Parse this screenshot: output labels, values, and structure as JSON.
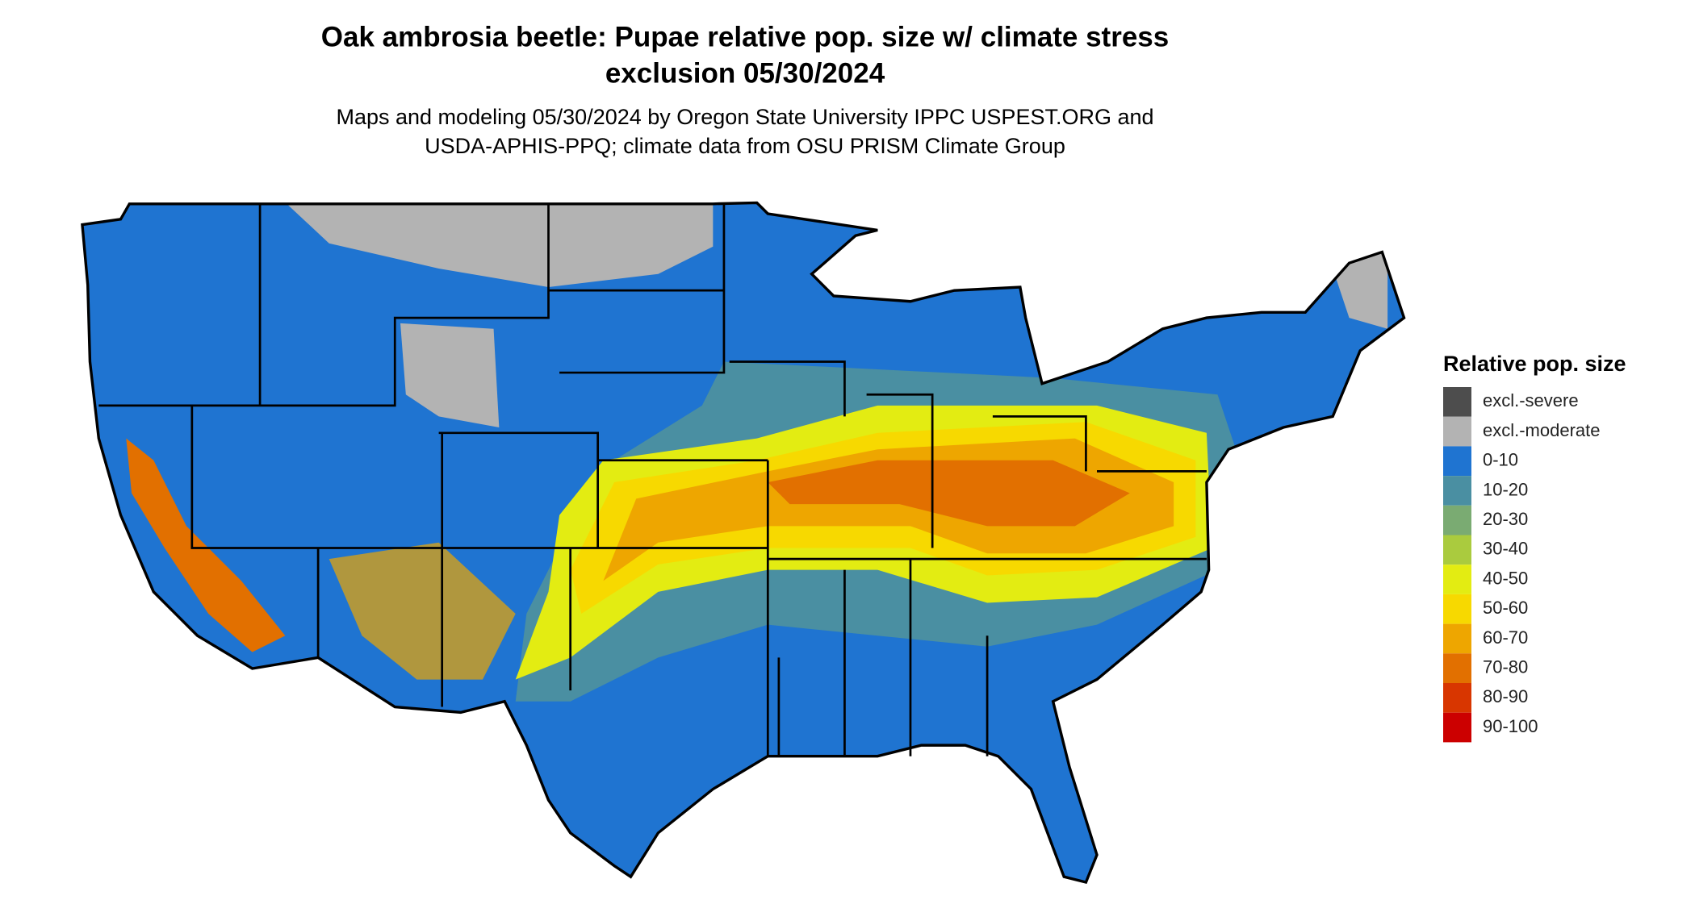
{
  "header": {
    "title": [
      "Oak ambrosia beetle: Pupae relative pop. size w/ climate stress",
      "exclusion 05/30/2024"
    ],
    "subtitle": [
      "Maps and modeling 05/30/2024 by Oregon State University IPPC USPEST.ORG and",
      "USDA-APHIS-PPQ; climate data from OSU PRISM Climate Group"
    ]
  },
  "legend": {
    "title": "Relative pop. size",
    "items": [
      {
        "label": "excl.-severe",
        "color": "#4d4d4d"
      },
      {
        "label": "excl.-moderate",
        "color": "#b3b3b3"
      },
      {
        "label": "0-10",
        "color": "#1f74d1"
      },
      {
        "label": "10-20",
        "color": "#4a8fa2"
      },
      {
        "label": "20-30",
        "color": "#7aab72"
      },
      {
        "label": "30-40",
        "color": "#aacb3e"
      },
      {
        "label": "40-50",
        "color": "#e3ec12"
      },
      {
        "label": "50-60",
        "color": "#f7d900"
      },
      {
        "label": "60-70",
        "color": "#eea600"
      },
      {
        "label": "70-80",
        "color": "#e27000"
      },
      {
        "label": "80-90",
        "color": "#d83600"
      },
      {
        "label": "90-100",
        "color": "#cc0000"
      }
    ]
  }
}
